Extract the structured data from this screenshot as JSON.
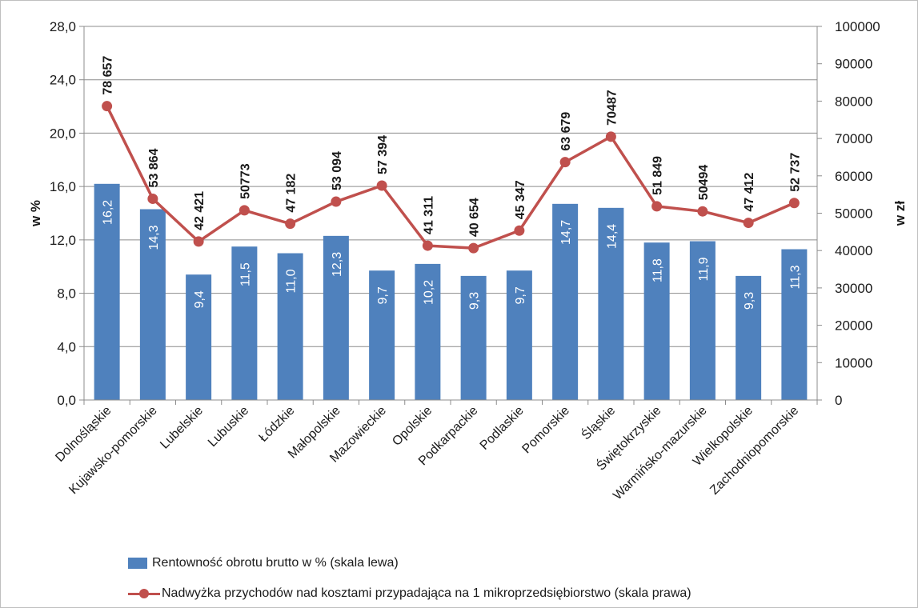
{
  "chart_data": {
    "type": "bar",
    "categories": [
      "Dolnośląskie",
      "Kujawsko-pomorskie",
      "Lubelskie",
      "Lubuskie",
      "Łódzkie",
      "Małopolskie",
      "Mazowieckie",
      "Opolskie",
      "Podkarpackie",
      "Podlaskie",
      "Pomorskie",
      "Śląskie",
      "Świętokrzyskie",
      "Warmińsko-mazurskie",
      "Wielkopolskie",
      "Zachodniopomorskie"
    ],
    "series": [
      {
        "name": "Rentowność obrotu brutto w % (skala lewa)",
        "type": "bar",
        "axis": "left",
        "color": "#4f81bd",
        "values": [
          16.2,
          14.3,
          9.4,
          11.5,
          11.0,
          12.3,
          9.7,
          10.2,
          9.3,
          9.7,
          14.7,
          14.4,
          11.8,
          11.9,
          9.3,
          11.3
        ],
        "labels": [
          "16,2",
          "14,3",
          "9,4",
          "11,5",
          "11,0",
          "12,3",
          "9,7",
          "10,2",
          "9,3",
          "9,7",
          "14,7",
          "14,4",
          "11,8",
          "11,9",
          "9,3",
          "11,3"
        ]
      },
      {
        "name": "Nadwyżka przychodów nad kosztami przypadająca na 1 mikroprzedsiębiorstwo (skala prawa)",
        "type": "line",
        "axis": "right",
        "color": "#c0504d",
        "values": [
          78657,
          53864,
          42421,
          50773,
          47182,
          53094,
          57394,
          41311,
          40654,
          45347,
          63679,
          70487,
          51849,
          50494,
          47412,
          52737
        ],
        "labels": [
          "78 657",
          "53 864",
          "42 421",
          "50773",
          "47 182",
          "53 094",
          "57 394",
          "41 311",
          "40 654",
          "45 347",
          "63 679",
          "70487",
          "51 849",
          "50494",
          "47 412",
          "52 737"
        ]
      }
    ],
    "ylabel": "w %",
    "y2label": "w zł",
    "ylim": [
      0,
      28
    ],
    "y2lim": [
      0,
      100000
    ],
    "yticks": [
      "0,0",
      "4,0",
      "8,0",
      "12,0",
      "16,0",
      "20,0",
      "24,0",
      "28,0"
    ],
    "y2ticks": [
      "0",
      "10000",
      "20000",
      "30000",
      "40000",
      "50000",
      "60000",
      "70000",
      "80000",
      "90000",
      "100000"
    ],
    "grid": true,
    "legend_position": "bottom"
  }
}
